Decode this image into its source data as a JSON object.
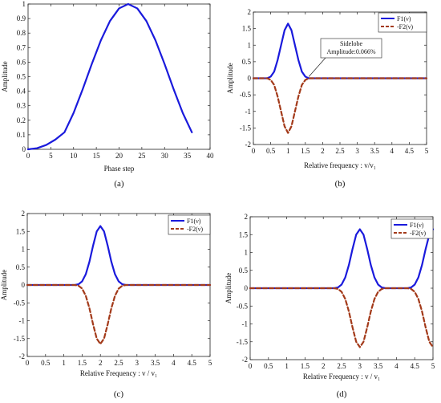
{
  "chart_data": [
    {
      "id": "a",
      "panel_label": "(a)",
      "type": "line",
      "xlabel": "Phase step",
      "ylabel": "Amplitude",
      "xlim": [
        0,
        40
      ],
      "ylim": [
        0,
        1
      ],
      "xticks": [
        "0",
        "5",
        "10",
        "15",
        "20",
        "25",
        "30",
        "35",
        "40"
      ],
      "yticks": [
        "0",
        "0.1",
        "0.2",
        "0.3",
        "0.4",
        "0.5",
        "0.6",
        "0.7",
        "0.8",
        "0.9",
        "1"
      ],
      "grid": false,
      "legend": null,
      "series": [
        {
          "color": "#1a1adc",
          "x": [
            0,
            2,
            4,
            6,
            8,
            10,
            12,
            14,
            16,
            18,
            20,
            22,
            24,
            26,
            28,
            30,
            32,
            34,
            36
          ],
          "values": [
            0,
            0.008,
            0.03,
            0.067,
            0.117,
            0.25,
            0.413,
            0.587,
            0.75,
            0.883,
            0.97,
            1.0,
            0.97,
            0.883,
            0.75,
            0.587,
            0.413,
            0.25,
            0.117
          ]
        }
      ]
    },
    {
      "id": "b",
      "panel_label": "(b)",
      "type": "line",
      "xlabel": "Relative frequency : v/v₁",
      "ylabel": "Amplitude",
      "xlim": [
        0,
        5
      ],
      "ylim": [
        -2,
        2
      ],
      "xticks": [
        "0",
        "0.5",
        "1",
        "1.5",
        "2",
        "2.5",
        "3",
        "3.5",
        "4",
        "4.5",
        "5"
      ],
      "yticks": [
        "-2",
        "-1.5",
        "-1",
        "-0.5",
        "0",
        "0.5",
        "1",
        "1.5",
        "2"
      ],
      "grid": false,
      "legend": "top-right",
      "series": [
        {
          "name": "F1(ν)",
          "color": "#1a1adc",
          "dash": "solid",
          "x": [
            0,
            0.2,
            0.4,
            0.5,
            0.6,
            0.7,
            0.8,
            0.9,
            1.0,
            1.1,
            1.2,
            1.3,
            1.4,
            1.5,
            1.6,
            1.8,
            2.0,
            3.0,
            4.0,
            5.0
          ],
          "values": [
            0,
            0,
            0,
            0.05,
            0.2,
            0.55,
            1.0,
            1.45,
            1.65,
            1.45,
            1.0,
            0.55,
            0.2,
            0.05,
            0,
            0,
            0,
            0,
            0,
            0
          ]
        },
        {
          "name": "-F2(ν)",
          "color": "#a33a1a",
          "dash": "dashed",
          "x": [
            0,
            0.2,
            0.4,
            0.5,
            0.6,
            0.7,
            0.8,
            0.9,
            1.0,
            1.1,
            1.2,
            1.3,
            1.4,
            1.5,
            1.6,
            1.8,
            2.0,
            3.0,
            4.0,
            5.0
          ],
          "values": [
            0,
            0,
            0,
            -0.05,
            -0.2,
            -0.55,
            -1.0,
            -1.45,
            -1.65,
            -1.45,
            -1.0,
            -0.55,
            -0.2,
            -0.05,
            0,
            0,
            0,
            0,
            0,
            0
          ]
        }
      ],
      "annotations": [
        {
          "lines": [
            "Sidelobe",
            "Amplitude:0.066%"
          ],
          "target_x": 1.6,
          "target_y": 0
        }
      ]
    },
    {
      "id": "c",
      "panel_label": "(c)",
      "type": "line",
      "xlabel": "Relative Frequency : v / v₁",
      "ylabel": "Amplitude",
      "xlim": [
        0,
        5
      ],
      "ylim": [
        -2,
        2
      ],
      "xticks": [
        "0",
        "0.5",
        "1",
        "1.5",
        "2",
        "2.5",
        "3",
        "3.5",
        "4",
        "4.5",
        "5"
      ],
      "yticks": [
        "-2",
        "-1.5",
        "-1",
        "-0.5",
        "0",
        "0.5",
        "1",
        "1.5",
        "2"
      ],
      "grid": false,
      "legend": "top-right",
      "series": [
        {
          "name": "F1(ν)",
          "color": "#1a1adc",
          "dash": "solid",
          "x": [
            0,
            1.0,
            1.3,
            1.4,
            1.5,
            1.6,
            1.7,
            1.8,
            1.9,
            2.0,
            2.1,
            2.2,
            2.3,
            2.4,
            2.5,
            2.6,
            2.7,
            3.0,
            4.0,
            5.0
          ],
          "values": [
            0,
            0,
            0,
            0.02,
            0.1,
            0.3,
            0.65,
            1.1,
            1.5,
            1.65,
            1.5,
            1.1,
            0.65,
            0.3,
            0.1,
            0.02,
            0,
            0,
            0,
            0
          ]
        },
        {
          "name": "-F2(ν)",
          "color": "#a33a1a",
          "dash": "dashed",
          "x": [
            0,
            1.0,
            1.3,
            1.4,
            1.5,
            1.6,
            1.7,
            1.8,
            1.9,
            2.0,
            2.1,
            2.2,
            2.3,
            2.4,
            2.5,
            2.6,
            2.7,
            3.0,
            4.0,
            5.0
          ],
          "values": [
            0,
            0,
            0,
            -0.02,
            -0.1,
            -0.3,
            -0.65,
            -1.1,
            -1.5,
            -1.65,
            -1.5,
            -1.1,
            -0.65,
            -0.3,
            -0.1,
            -0.02,
            0,
            0,
            0,
            0
          ]
        }
      ]
    },
    {
      "id": "d",
      "panel_label": "(d)",
      "type": "line",
      "xlabel": "Relative Frequency : v / v₁",
      "ylabel": "Amplitude",
      "xlim": [
        0,
        5
      ],
      "ylim": [
        -2,
        2
      ],
      "xticks": [
        "0",
        "0.5",
        "1",
        "1.5",
        "2",
        "2.5",
        "3",
        "3.5",
        "4",
        "4.5",
        "5"
      ],
      "yticks": [
        "-2",
        "-1.5",
        "-1",
        "-0.5",
        "0",
        "0.5",
        "1",
        "1.5",
        "2"
      ],
      "grid": false,
      "legend": "top-right",
      "series": [
        {
          "name": "F1(ν)",
          "color": "#1a1adc",
          "dash": "solid",
          "x": [
            0,
            2.0,
            2.3,
            2.4,
            2.5,
            2.6,
            2.7,
            2.8,
            2.9,
            3.0,
            3.1,
            3.2,
            3.3,
            3.4,
            3.5,
            3.6,
            3.7,
            4.0,
            4.3,
            4.4,
            4.5,
            4.6,
            4.7,
            4.8,
            4.9,
            5.0
          ],
          "values": [
            0,
            0,
            0,
            0.02,
            0.1,
            0.3,
            0.65,
            1.1,
            1.5,
            1.65,
            1.5,
            1.1,
            0.65,
            0.3,
            0.1,
            0.02,
            0,
            0,
            0,
            0.02,
            0.1,
            0.3,
            0.65,
            1.1,
            1.5,
            1.65
          ]
        },
        {
          "name": "-F2(ν)",
          "color": "#a33a1a",
          "dash": "dashed",
          "x": [
            0,
            2.0,
            2.3,
            2.4,
            2.5,
            2.6,
            2.7,
            2.8,
            2.9,
            3.0,
            3.1,
            3.2,
            3.3,
            3.4,
            3.5,
            3.6,
            3.7,
            4.0,
            4.3,
            4.4,
            4.5,
            4.6,
            4.7,
            4.8,
            4.9,
            5.0
          ],
          "values": [
            0,
            0,
            0,
            -0.02,
            -0.1,
            -0.3,
            -0.65,
            -1.1,
            -1.5,
            -1.65,
            -1.5,
            -1.1,
            -0.65,
            -0.3,
            -0.1,
            -0.02,
            0,
            0,
            0,
            -0.02,
            -0.1,
            -0.3,
            -0.65,
            -1.1,
            -1.5,
            -1.65
          ]
        }
      ]
    }
  ]
}
